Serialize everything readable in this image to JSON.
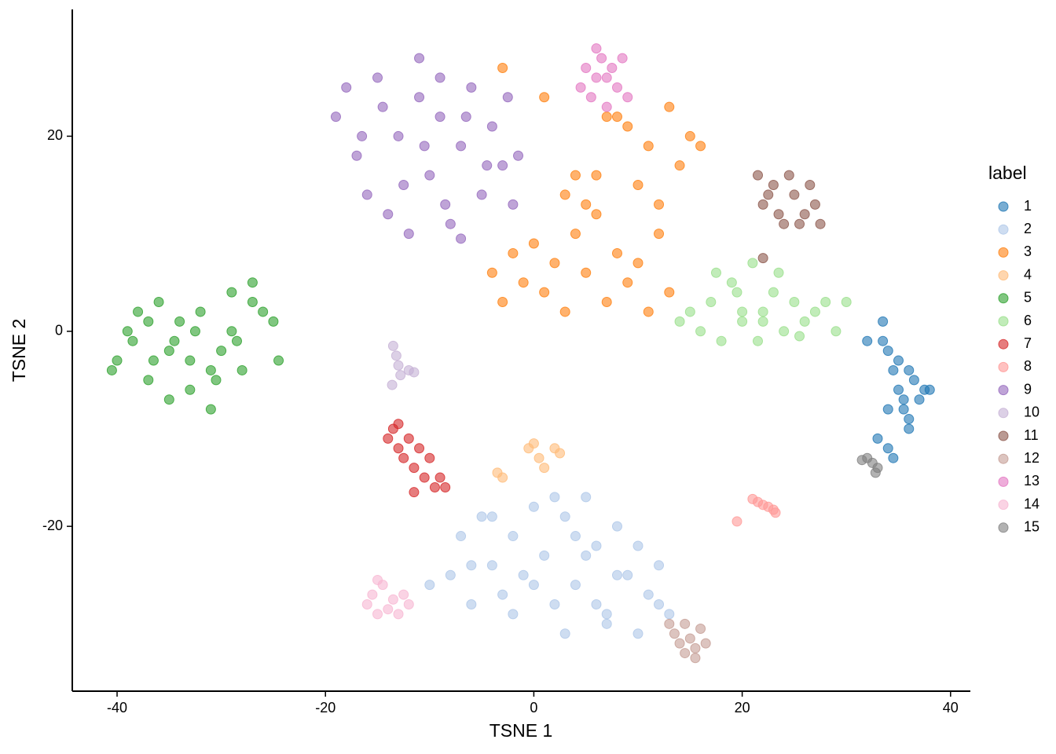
{
  "chart_data": {
    "type": "scatter",
    "x_label": "TSNE 1",
    "y_label": "TSNE 2",
    "legend_title": "label",
    "legend_position": "right",
    "xlim": [
      -44.3,
      41.9
    ],
    "ylim": [
      -36.9,
      33.0
    ],
    "xticks": [
      -40,
      -20,
      0,
      20,
      40
    ],
    "yticks": [
      -20,
      0,
      20
    ],
    "grid": false,
    "series": [
      {
        "name": "1",
        "color": "#1f77b4",
        "x": [
          33.5,
          34,
          34.5,
          35,
          35.5,
          36,
          36.5,
          37,
          37.5,
          34,
          35,
          36,
          33,
          34.5,
          35.5,
          38,
          33.5,
          36,
          34,
          32
        ],
        "y": [
          1,
          -2,
          -4,
          -6,
          -8,
          -10,
          -5,
          -7,
          -6,
          -12,
          -3,
          -9,
          -11,
          -13,
          -7,
          -6,
          -1,
          -4,
          -8,
          -1
        ]
      },
      {
        "name": "2",
        "color": "#aec7e8",
        "x": [
          -8,
          -7,
          -6,
          -5,
          -4,
          -3,
          -2,
          -1,
          0,
          1,
          2,
          3,
          4,
          5,
          6,
          7,
          8,
          9,
          10,
          11,
          12,
          13,
          -6,
          -4,
          -2,
          0,
          2,
          4,
          6,
          8,
          10,
          12,
          -10,
          3,
          5,
          7
        ],
        "y": [
          -25,
          -21,
          -28,
          -19,
          -24,
          -27,
          -21,
          -25,
          -18,
          -23,
          -28,
          -19,
          -26,
          -17,
          -22,
          -29,
          -20,
          -25,
          -31,
          -27,
          -24,
          -29,
          -24,
          -19,
          -29,
          -26,
          -17,
          -21,
          -28,
          -25,
          -22,
          -28,
          -26,
          -31,
          -23,
          -30
        ]
      },
      {
        "name": "3",
        "color": "#ff7f0e",
        "x": [
          -4,
          -3,
          -2,
          -1,
          0,
          1,
          2,
          3,
          4,
          5,
          6,
          7,
          8,
          9,
          10,
          11,
          12,
          13,
          3,
          5,
          7,
          6,
          9,
          11,
          13,
          14,
          15,
          16,
          12,
          10,
          8,
          -3,
          1,
          4
        ],
        "y": [
          6,
          3,
          8,
          5,
          9,
          4,
          7,
          2,
          10,
          6,
          12,
          3,
          8,
          5,
          7,
          2,
          10,
          4,
          14,
          13,
          22,
          16,
          21,
          19,
          23,
          17,
          20,
          19,
          13,
          15,
          22,
          27,
          24,
          16
        ]
      },
      {
        "name": "4",
        "color": "#ffbb78",
        "x": [
          -0.5,
          0,
          0.5,
          1,
          2,
          2.5,
          -3.5,
          -3
        ],
        "y": [
          -12,
          -11.5,
          -13,
          -14,
          -12,
          -12.5,
          -14.5,
          -15
        ]
      },
      {
        "name": "5",
        "color": "#2ca02c",
        "x": [
          -40,
          -39,
          -38,
          -37,
          -36,
          -35,
          -34,
          -33,
          -32,
          -31,
          -30,
          -29,
          -28,
          -27,
          -26,
          -25,
          -24.5,
          -38.5,
          -36.5,
          -34.5,
          -32.5,
          -30.5,
          -28.5,
          -35,
          -33,
          -31,
          -29,
          -27,
          -37,
          -40.5
        ],
        "y": [
          -3,
          0,
          2,
          -5,
          3,
          -7,
          1,
          -6,
          2,
          -8,
          -2,
          4,
          -4,
          5,
          2,
          1,
          -3,
          -1,
          -3,
          -1,
          0,
          -5,
          -1,
          -2,
          -3,
          -4,
          0,
          3,
          1,
          -4
        ]
      },
      {
        "name": "6",
        "color": "#98df8a",
        "x": [
          14,
          15,
          16,
          17,
          18,
          19,
          20,
          21,
          22,
          23,
          24,
          25,
          26,
          27,
          28,
          29,
          30,
          17.5,
          19.5,
          21.5,
          23.5,
          25.5,
          20,
          22
        ],
        "y": [
          1,
          2,
          0,
          3,
          -1,
          5,
          2,
          7,
          1,
          4,
          0,
          3,
          1,
          2,
          3,
          0,
          3,
          6,
          4,
          -1,
          6,
          -0.5,
          1,
          2
        ]
      },
      {
        "name": "7",
        "color": "#d62728",
        "x": [
          -14,
          -13.5,
          -13,
          -12.5,
          -12,
          -11.5,
          -11,
          -10.5,
          -10,
          -9.5,
          -9,
          -8.5,
          -13,
          -11.5
        ],
        "y": [
          -11,
          -10,
          -12,
          -13,
          -11,
          -14,
          -12,
          -15,
          -13,
          -16,
          -15,
          -16,
          -9.5,
          -16.5
        ]
      },
      {
        "name": "8",
        "color": "#ff9896",
        "x": [
          21.5,
          22,
          22.5,
          23,
          23.2,
          19.5,
          21
        ],
        "y": [
          -17.5,
          -17.8,
          -18,
          -18.3,
          -18.6,
          -19.5,
          -17.2
        ]
      },
      {
        "name": "9",
        "color": "#9467bd",
        "x": [
          -19,
          -18,
          -17,
          -16,
          -15,
          -14,
          -13,
          -12,
          -11,
          -10,
          -9,
          -8,
          -7,
          -6,
          -5,
          -4,
          -3,
          -2,
          -1.5,
          -16.5,
          -14.5,
          -12.5,
          -10.5,
          -8.5,
          -6.5,
          -4.5,
          -2.5,
          -11,
          -9,
          -7
        ],
        "y": [
          22,
          25,
          18,
          14,
          26,
          12,
          20,
          10,
          24,
          16,
          22,
          11,
          19,
          25,
          14,
          21,
          17,
          13,
          18,
          20,
          23,
          15,
          19,
          13,
          22,
          17,
          24,
          28,
          26,
          9.5
        ]
      },
      {
        "name": "10",
        "color": "#c5b0d5",
        "x": [
          -13.5,
          -13.2,
          -13,
          -12.8,
          -12,
          -13.6,
          -11.5
        ],
        "y": [
          -1.5,
          -2.5,
          -3.5,
          -4.5,
          -4,
          -5.5,
          -4.2
        ]
      },
      {
        "name": "11",
        "color": "#8c564b",
        "x": [
          21.5,
          22,
          23,
          24,
          25,
          26,
          27,
          22.5,
          24.5,
          26.5,
          23.5,
          25.5,
          27.5,
          22
        ],
        "y": [
          16,
          13,
          15,
          11,
          14,
          12,
          13,
          14,
          16,
          15,
          12,
          11,
          11,
          7.5
        ]
      },
      {
        "name": "12",
        "color": "#c49c94",
        "x": [
          13.5,
          14,
          14.5,
          15,
          15.5,
          16,
          16.5,
          14.5,
          15.5,
          13
        ],
        "y": [
          -31,
          -32,
          -33,
          -31.5,
          -32.5,
          -30.5,
          -32,
          -30,
          -33.5,
          -30
        ]
      },
      {
        "name": "13",
        "color": "#e377c2",
        "x": [
          4.5,
          5,
          5.5,
          6,
          6.5,
          7,
          7.5,
          8,
          8.5,
          6,
          7,
          9
        ],
        "y": [
          25,
          27,
          24,
          26,
          28,
          23,
          27,
          25,
          28,
          29,
          26,
          24
        ]
      },
      {
        "name": "14",
        "color": "#f7b6d2",
        "x": [
          -16,
          -15.5,
          -15,
          -14.5,
          -14,
          -13.5,
          -13,
          -12.5,
          -12,
          -15
        ],
        "y": [
          -28,
          -27,
          -29,
          -26,
          -28.5,
          -27.5,
          -29,
          -27,
          -28,
          -25.5
        ]
      },
      {
        "name": "15",
        "color": "#7f7f7f",
        "x": [
          32,
          32.5,
          33,
          32.8,
          31.5
        ],
        "y": [
          -13,
          -13.5,
          -14,
          -14.5,
          -13.2
        ]
      }
    ]
  }
}
